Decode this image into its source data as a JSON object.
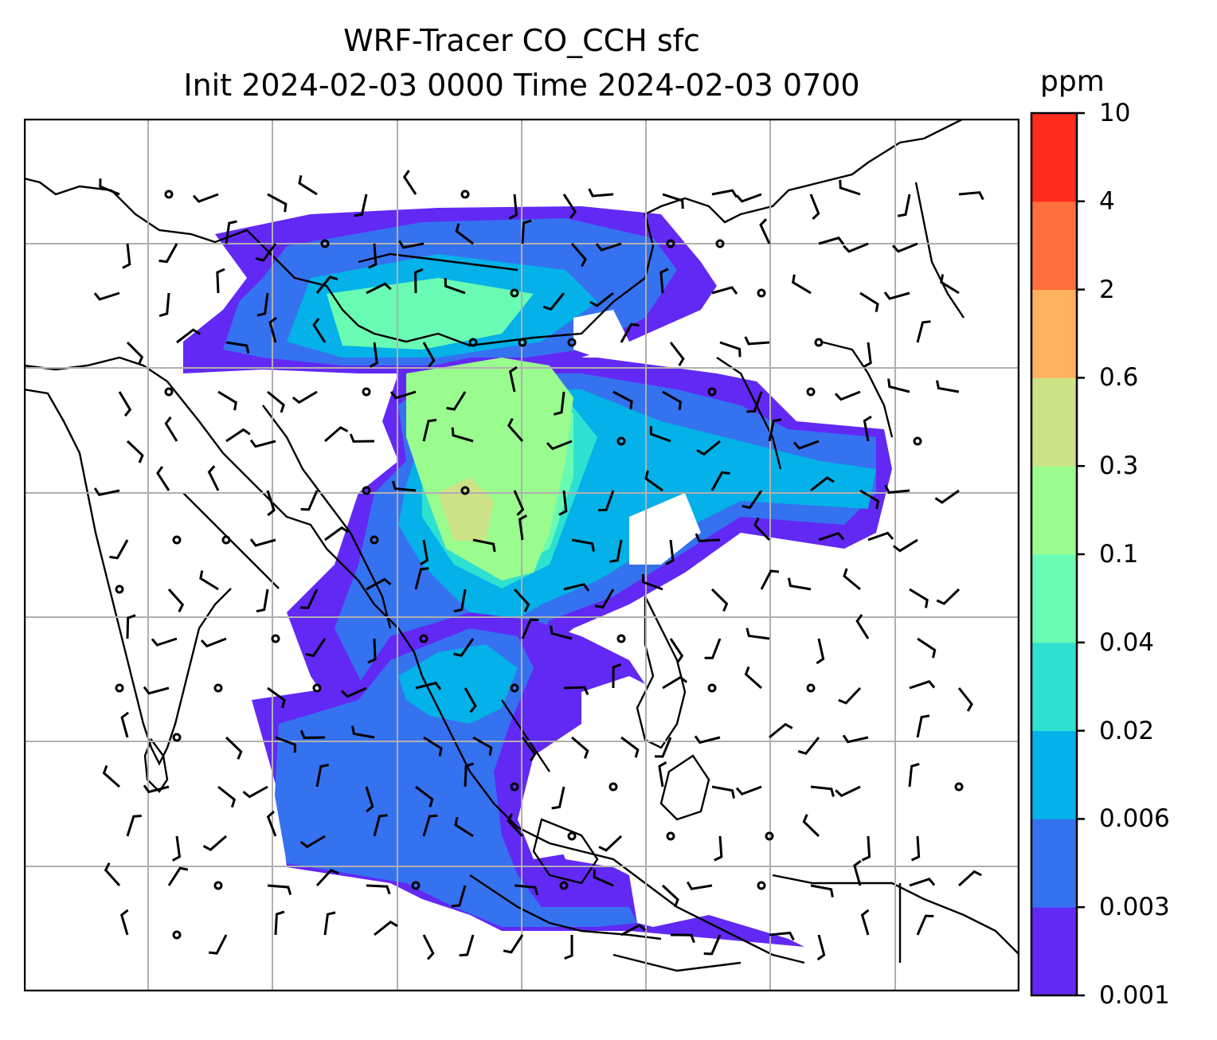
{
  "chart_data": {
    "type": "heatmap",
    "title_line1": "WRF-Tracer CO_CCH sfc",
    "title_line2": "Init 2024-02-03 0000 Time 2024-02-03 0700",
    "colorbar": {
      "unit": "ppm",
      "levels": [
        "0.001",
        "0.003",
        "0.006",
        "0.02",
        "0.04",
        "0.1",
        "0.3",
        "0.6",
        "2",
        "4",
        "10"
      ],
      "colors": [
        "#6229f5",
        "#3572f0",
        "#04b1e8",
        "#2ee0d0",
        "#69fbb4",
        "#9afb8e",
        "#cde286",
        "#feb15e",
        "#ff6f3b",
        "#ff2b1c"
      ]
    },
    "grid": true,
    "map_features": [
      "coastlines",
      "country borders",
      "wind barbs",
      "contours"
    ]
  }
}
